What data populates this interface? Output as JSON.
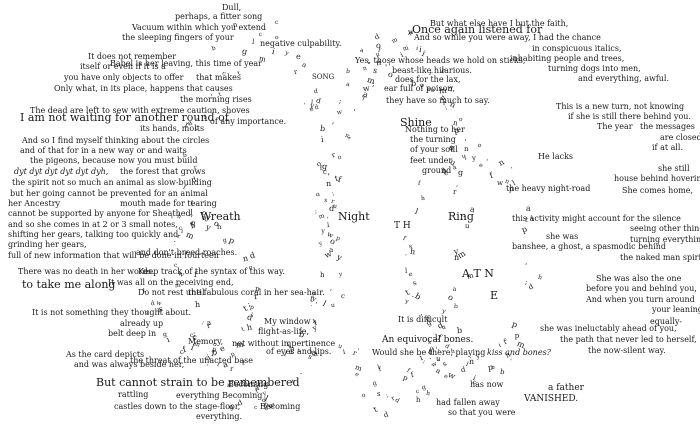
{
  "fragments": [
    {
      "text": "Dull,"
    },
    {
      "text": "perhaps, a fitter song"
    },
    {
      "text": "Vacuum within which you extend"
    },
    {
      "text": "the sleeping fingers of your"
    },
    {
      "text": "negative culpability."
    },
    {
      "text": "It does not remember"
    },
    {
      "text": "itself or even if it is a"
    },
    {
      "text": "Babel is her leaving, this time of year"
    },
    {
      "text": "you have only objects to offer"
    },
    {
      "text": "that makes"
    },
    {
      "text": "Only what, in its place, happens that causes"
    },
    {
      "text": "the morning rises"
    },
    {
      "text": "The dead are left to sew with extreme caution, shoves"
    },
    {
      "text": "its hands, molts"
    },
    {
      "text": "I am not waiting for another round of"
    },
    {
      "text": "of any importance."
    },
    {
      "text": "And so I find myself thinking about the circles"
    },
    {
      "text": "and of that for in a new way or and waits"
    },
    {
      "text": "the pigeons, because now you must build"
    },
    {
      "text": "dyt dyt dyt dyt dyt dyh,"
    },
    {
      "text": "the forest that grows"
    },
    {
      "text": "the spirit not so much an animal as slow-building"
    },
    {
      "text": "but her going cannot be prevented for an animal"
    },
    {
      "text": "her Ancestry"
    },
    {
      "text": "mouth made for tearing"
    },
    {
      "text": "cannot be supported by anyone for Sheathed,"
    },
    {
      "text": "and so she comes in at 2 or 3 small notes,"
    },
    {
      "text": "shifting her gears, talking too quickly and"
    },
    {
      "text": "grinding her gears,"
    },
    {
      "text": "full of new information that will be done in fourteen"
    },
    {
      "text": "and don't breed roaches."
    },
    {
      "text": "Wreath"
    },
    {
      "text": "There was no death in her words."
    },
    {
      "text": "Keep track of the syntax of this way."
    },
    {
      "text": "It was all on the receiving end,"
    },
    {
      "text": "to take me along"
    },
    {
      "text": "Do not rest until"
    },
    {
      "text": "the fabulous coral in her sea-hair."
    },
    {
      "text": "It is not something they thought about."
    },
    {
      "text": "already up"
    },
    {
      "text": "belt deep in"
    },
    {
      "text": "As the card depicts"
    },
    {
      "text": "and was always beside her,"
    },
    {
      "text": "Memory,"
    },
    {
      "text": "the threat of the unacted base"
    },
    {
      "text": "My window"
    },
    {
      "text": "flight-as-life,"
    },
    {
      "text": "not without impertinence"
    },
    {
      "text": "of eyes and lips."
    },
    {
      "text": "But cannot strain to be remembered"
    },
    {
      "text": "Becoming"
    },
    {
      "text": "rattling"
    },
    {
      "text": "everything  Becoming"
    },
    {
      "text": "castles down to the stage-floor,"
    },
    {
      "text": "everything."
    },
    {
      "text": "Becoming"
    },
    {
      "text": "SONG"
    },
    {
      "text": "Yes, those whose heads we hold on sticks,"
    },
    {
      "text": "beast-like hilarious."
    },
    {
      "text": "does for the lax,"
    },
    {
      "text": "ear full of poison,"
    },
    {
      "text": "they have so much to say."
    },
    {
      "text": "But what else have I but the faith,"
    },
    {
      "text": "Once again listened for"
    },
    {
      "text": "And so while you were away, I had the chance"
    },
    {
      "text": "in conspicuous italics,"
    },
    {
      "text": "inhabiting people and trees,"
    },
    {
      "text": "turning dogs into men,"
    },
    {
      "text": "and everything, awful."
    },
    {
      "text": "This is a new turn, not knowing"
    },
    {
      "text": "if she is still there behind you."
    },
    {
      "text": "The year"
    },
    {
      "text": "the messages"
    },
    {
      "text": "are closed"
    },
    {
      "text": "if at all."
    },
    {
      "text": "Shine"
    },
    {
      "text": "Nothing to her"
    },
    {
      "text": "the turning"
    },
    {
      "text": "of your soul"
    },
    {
      "text": "feet under"
    },
    {
      "text": "ground"
    },
    {
      "text": "He lacks"
    },
    {
      "text": "she still"
    },
    {
      "text": "house behind hovering"
    },
    {
      "text": "She comes home,"
    },
    {
      "text": "the heavy night-road"
    },
    {
      "text": "this activity might account for the silence"
    },
    {
      "text": "Night"
    },
    {
      "text": "Ring"
    },
    {
      "text": "seeing other things,"
    },
    {
      "text": "turning everything"
    },
    {
      "text": "she was"
    },
    {
      "text": "banshee, a ghost, a spasmodic behind"
    },
    {
      "text": "the naked man spirit of"
    },
    {
      "text": "She was also the one"
    },
    {
      "text": "before you and behind you,"
    },
    {
      "text": "And when you turn around"
    },
    {
      "text": "your leaning"
    },
    {
      "text": "equally-"
    },
    {
      "text": "she was ineluctably ahead of you,"
    },
    {
      "text": "the path that never led to herself,"
    },
    {
      "text": "the now-silent way."
    },
    {
      "text": "It is difficult"
    },
    {
      "text": "An equivocal bones."
    },
    {
      "text": "Would she be there, playing"
    },
    {
      "text": "kiss and bones?"
    },
    {
      "text": "a father"
    },
    {
      "text": "VANISHED."
    },
    {
      "text": "has now"
    },
    {
      "text": "had fallen away"
    },
    {
      "text": "so that you were"
    },
    {
      "text": "E"
    },
    {
      "text": "A T N"
    },
    {
      "text": "T H"
    }
  ]
}
